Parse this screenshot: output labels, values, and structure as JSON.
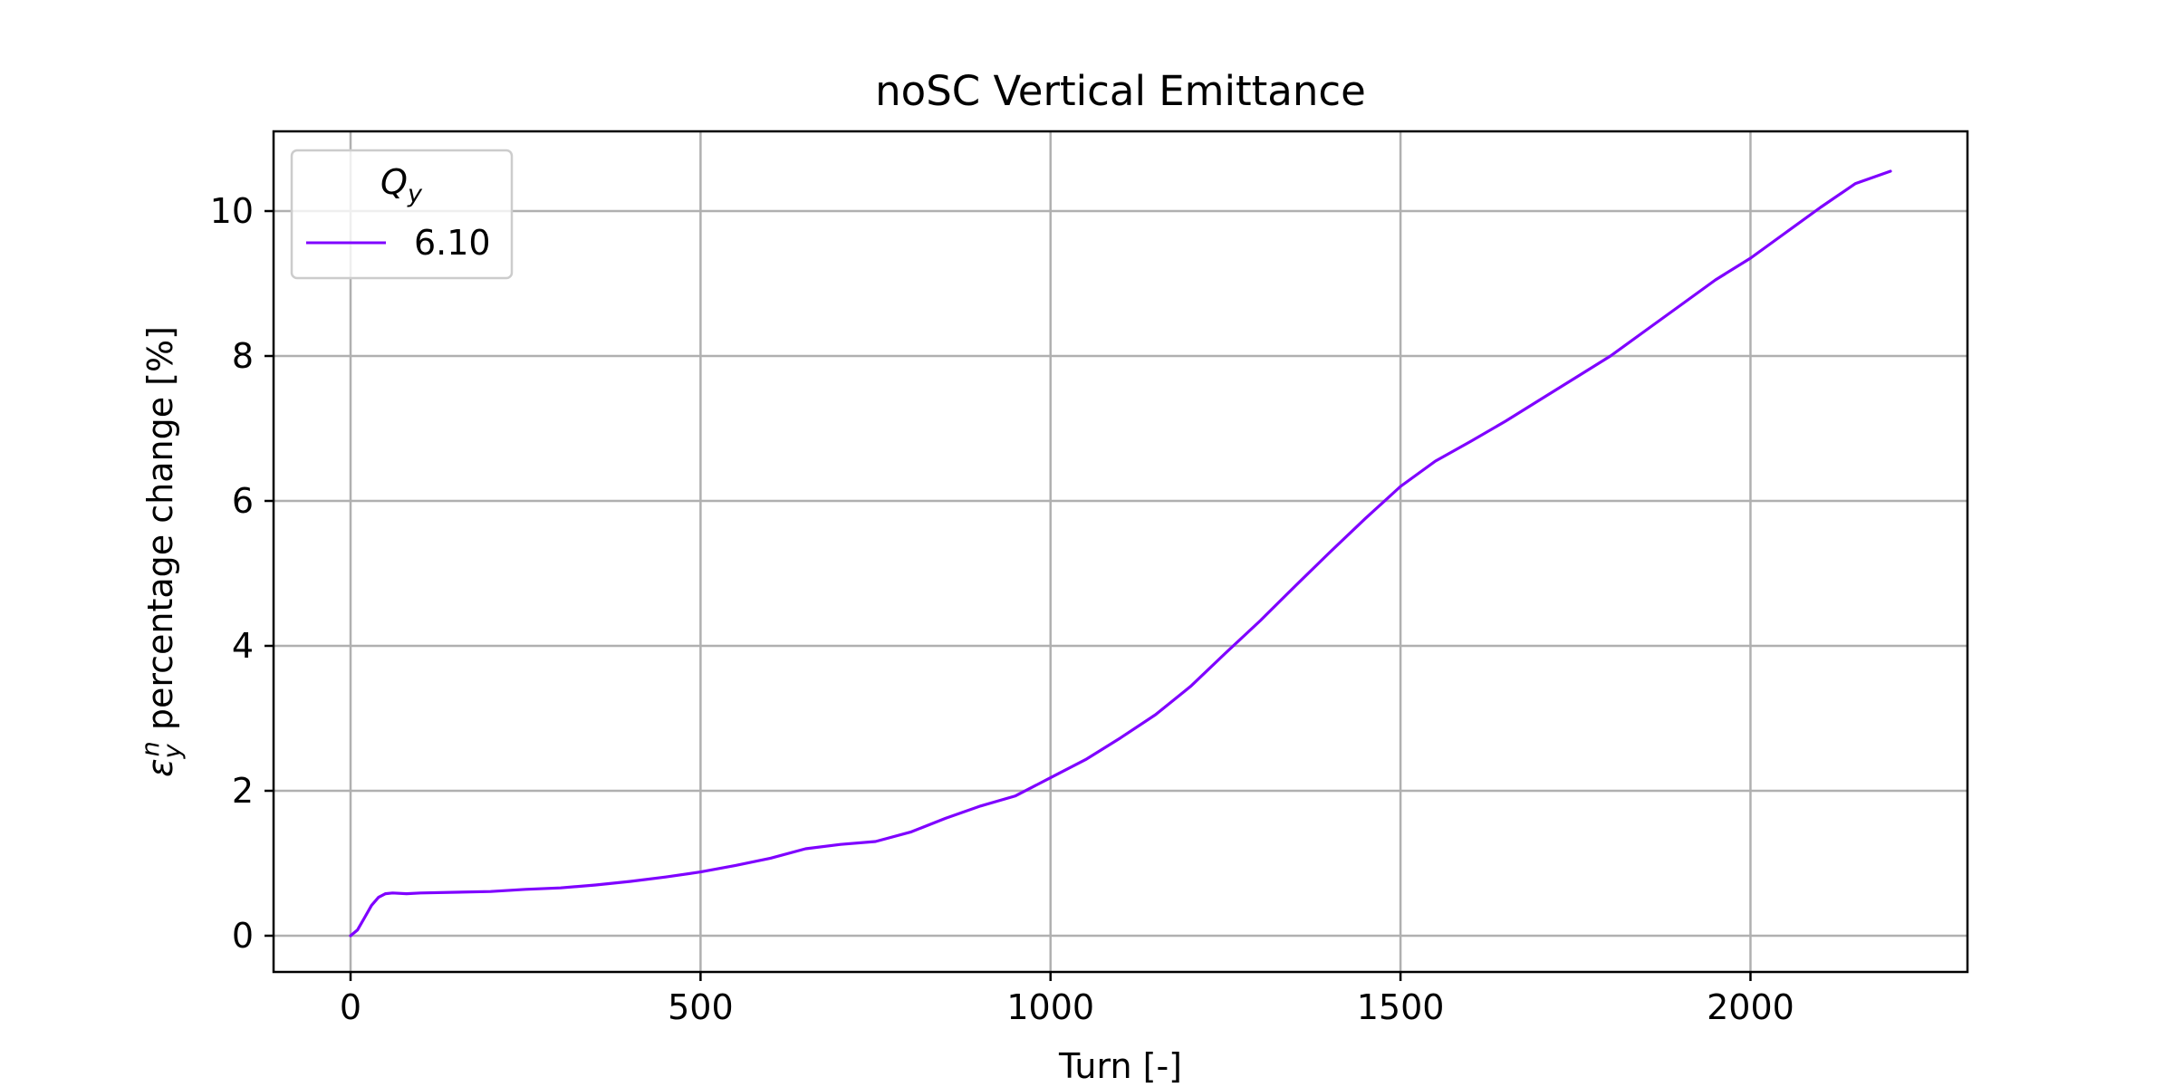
{
  "chart_data": {
    "type": "line",
    "title": "noSC Vertical Emittance",
    "xlabel": "Turn [-]",
    "ylabel": {
      "symbol": "ε",
      "subscript": "y",
      "superscript": "n",
      "text": " percentage change [%]"
    },
    "xlim": [
      -110,
      2310
    ],
    "ylim": [
      -0.5,
      11.1
    ],
    "xticks": [
      0,
      500,
      1000,
      1500,
      2000
    ],
    "yticks": [
      0,
      2,
      4,
      6,
      8,
      10
    ],
    "grid": true,
    "legend": {
      "placement": "top-left",
      "title_symbol": "Q",
      "title_subscript": "y"
    },
    "series": [
      {
        "name": "6.10",
        "color": "#7f00ff",
        "x": [
          0,
          10,
          20,
          30,
          40,
          50,
          60,
          80,
          100,
          150,
          200,
          250,
          300,
          350,
          400,
          450,
          500,
          550,
          600,
          650,
          700,
          750,
          800,
          850,
          900,
          950,
          1000,
          1050,
          1100,
          1150,
          1200,
          1250,
          1300,
          1350,
          1400,
          1450,
          1500,
          1550,
          1600,
          1650,
          1700,
          1750,
          1800,
          1850,
          1900,
          1950,
          2000,
          2050,
          2100,
          2150,
          2200
        ],
        "y": [
          0.0,
          0.08,
          0.25,
          0.42,
          0.53,
          0.58,
          0.59,
          0.58,
          0.59,
          0.6,
          0.61,
          0.64,
          0.66,
          0.7,
          0.75,
          0.81,
          0.88,
          0.97,
          1.07,
          1.2,
          1.26,
          1.3,
          1.43,
          1.62,
          1.79,
          1.93,
          2.18,
          2.43,
          2.73,
          3.05,
          3.44,
          3.9,
          4.35,
          4.83,
          5.3,
          5.76,
          6.2,
          6.55,
          6.82,
          7.1,
          7.4,
          7.7,
          8.0,
          8.35,
          8.7,
          9.05,
          9.35,
          9.7,
          10.05,
          10.38,
          10.55
        ]
      }
    ]
  }
}
